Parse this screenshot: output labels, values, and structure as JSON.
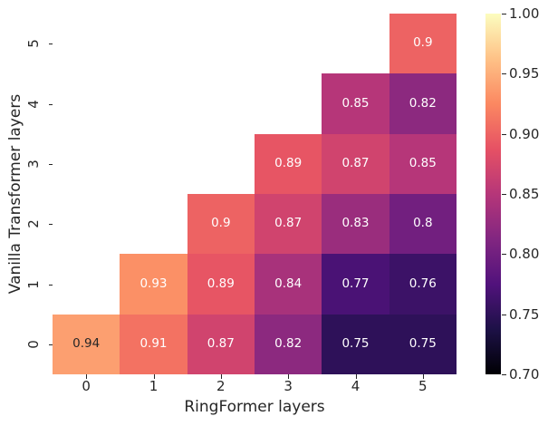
{
  "figure": {
    "background": "#ffffff",
    "text_color": "#262626"
  },
  "chart_data": {
    "type": "heatmap",
    "title": "",
    "xlabel": "RingFormer layers",
    "ylabel": "Vanilla Transformer layers",
    "x_ticklabels": [
      "0",
      "1",
      "2",
      "3",
      "4",
      "5"
    ],
    "y_ticklabels": [
      "5",
      "4",
      "3",
      "2",
      "1",
      "0"
    ],
    "vmin": 0.7,
    "vmax": 1.0,
    "grid": false,
    "mask": "upper-triangle-empty",
    "rows": [
      {
        "y": "5",
        "cells": [
          null,
          null,
          null,
          null,
          null,
          {
            "v": 0.9,
            "label": "0.9"
          }
        ]
      },
      {
        "y": "4",
        "cells": [
          null,
          null,
          null,
          null,
          {
            "v": 0.85,
            "label": "0.85"
          },
          {
            "v": 0.82,
            "label": "0.82"
          }
        ]
      },
      {
        "y": "3",
        "cells": [
          null,
          null,
          null,
          {
            "v": 0.89,
            "label": "0.89"
          },
          {
            "v": 0.87,
            "label": "0.87"
          },
          {
            "v": 0.85,
            "label": "0.85"
          }
        ]
      },
      {
        "y": "2",
        "cells": [
          null,
          null,
          {
            "v": 0.9,
            "label": "0.9"
          },
          {
            "v": 0.87,
            "label": "0.87"
          },
          {
            "v": 0.83,
            "label": "0.83"
          },
          {
            "v": 0.8,
            "label": "0.8"
          }
        ]
      },
      {
        "y": "1",
        "cells": [
          null,
          {
            "v": 0.93,
            "label": "0.93"
          },
          {
            "v": 0.89,
            "label": "0.89"
          },
          {
            "v": 0.84,
            "label": "0.84"
          },
          {
            "v": 0.77,
            "label": "0.77"
          },
          {
            "v": 0.76,
            "label": "0.76"
          }
        ]
      },
      {
        "y": "0",
        "cells": [
          {
            "v": 0.94,
            "label": "0.94"
          },
          {
            "v": 0.91,
            "label": "0.91"
          },
          {
            "v": 0.87,
            "label": "0.87"
          },
          {
            "v": 0.82,
            "label": "0.82"
          },
          {
            "v": 0.75,
            "label": "0.75"
          },
          {
            "v": 0.75,
            "label": "0.75"
          }
        ]
      }
    ],
    "colormap_name": "magma",
    "colormap_stops": [
      "#000004",
      "#1d1147",
      "#51127c",
      "#822681",
      "#b63679",
      "#e65164",
      "#fb8861",
      "#fec287",
      "#fcfdbf"
    ],
    "annotation_colors": {
      "light": "#ffffff",
      "dark": "#262626"
    },
    "colorbar": {
      "ticks": [
        "1.00",
        "0.95",
        "0.90",
        "0.85",
        "0.80",
        "0.75",
        "0.70"
      ]
    }
  }
}
